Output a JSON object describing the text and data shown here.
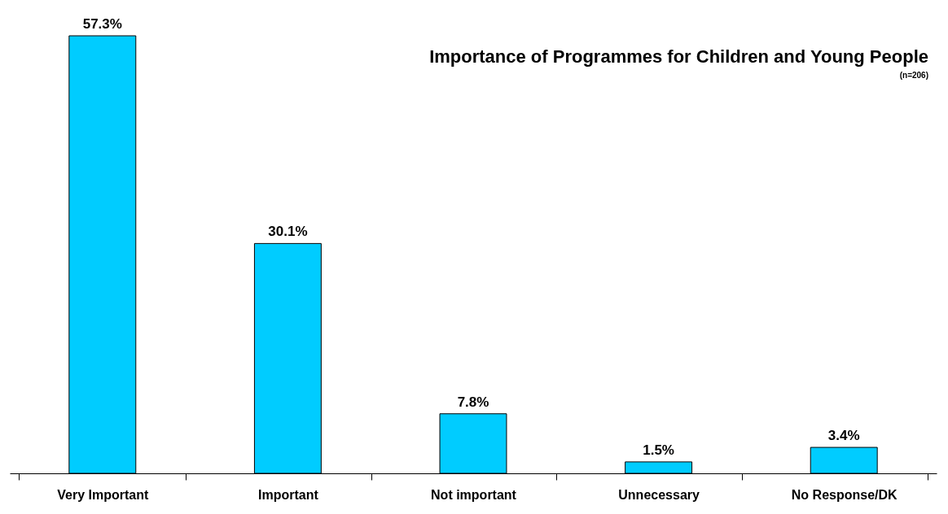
{
  "chart_data": {
    "type": "bar",
    "title": "Importance of Programmes for Children and  Young People",
    "subtitle": "(n=206)",
    "categories": [
      "Very Important",
      "Important",
      "Not important",
      "Unnecessary",
      "No Response/DK"
    ],
    "values": [
      57.3,
      30.1,
      7.8,
      1.5,
      3.4
    ],
    "value_labels": [
      "57.3%",
      "30.1%",
      "7.8%",
      "1.5%",
      "3.4%"
    ],
    "color": "#00ccff",
    "grid": false
  }
}
